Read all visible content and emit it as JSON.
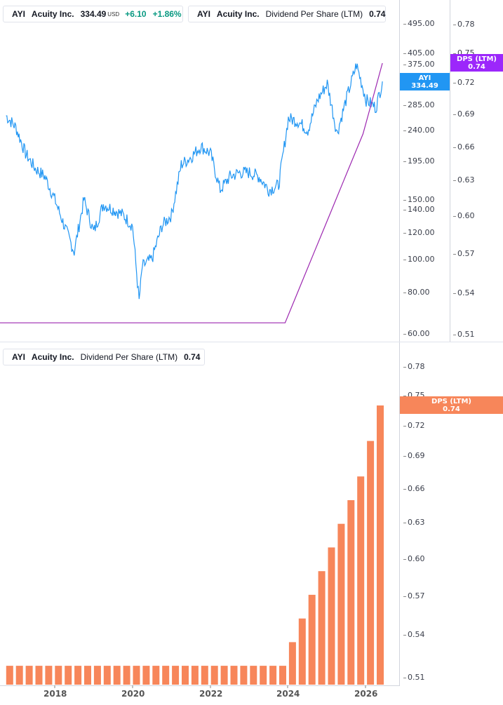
{
  "top_legend": {
    "symbol": "AYI",
    "company": "Acuity Inc.",
    "price": "334.49",
    "currency": "USD",
    "change": "+6.10",
    "change_pct": "+1.86%",
    "accent": "#2196f3"
  },
  "dps_legend_top": {
    "symbol": "AYI",
    "company": "Acuity Inc.",
    "metric": "Dividend Per Share (LTM)",
    "value": "0.74",
    "accent": "#9c27b0"
  },
  "dps_legend_bottom": {
    "symbol": "AYI",
    "company": "Acuity Inc.",
    "metric": "Dividend Per Share (LTM)",
    "value": "0.74",
    "accent": "#f7865a"
  },
  "badges": {
    "price_symbol": "AYI",
    "price_value": "334.49",
    "dps_label": "DPS (LTM)",
    "dps_value": "0.74",
    "dps_label_bottom": "DPS (LTM)",
    "dps_value_bottom": "0.74"
  },
  "colors": {
    "price": "#2196f3",
    "dps_line": "#9c27b0",
    "dps_badge_top": "#9c27fb",
    "bars": "#f7865a"
  },
  "chart_data": [
    {
      "type": "line",
      "series": [
        {
          "name": "AYI",
          "x": [
            "2016-10",
            "2017-01",
            "2017-04",
            "2017-07",
            "2017-10",
            "2018-01",
            "2018-04",
            "2018-07",
            "2018-10",
            "2019-01",
            "2019-04",
            "2019-07",
            "2019-10",
            "2020-01",
            "2020-03",
            "2020-04",
            "2020-07",
            "2020-10",
            "2021-01",
            "2021-04",
            "2021-07",
            "2021-10",
            "2022-01",
            "2022-04",
            "2022-07",
            "2022-10",
            "2023-01",
            "2023-04",
            "2023-07",
            "2023-10",
            "2024-01",
            "2024-04",
            "2024-07",
            "2024-10",
            "2025-01",
            "2025-04",
            "2025-07",
            "2025-10",
            "2026-01",
            "2026-04",
            "2026-06"
          ],
          "values": [
            265,
            245,
            205,
            185,
            175,
            150,
            125,
            105,
            150,
            120,
            145,
            140,
            135,
            125,
            75,
            95,
            100,
            125,
            135,
            190,
            200,
            215,
            205,
            160,
            175,
            180,
            180,
            175,
            160,
            165,
            260,
            255,
            240,
            295,
            330,
            235,
            300,
            375,
            295,
            280,
            334.49
          ]
        },
        {
          "name": "Dividend Per Share (LTM)",
          "x": [
            "2016-10",
            "2023-12",
            "2024-03",
            "2024-06",
            "2024-09",
            "2024-12",
            "2025-03",
            "2025-06",
            "2025-09",
            "2025-12",
            "2026-03",
            "2026-06"
          ],
          "values": [
            0.52,
            0.52,
            0.54,
            0.56,
            0.58,
            0.6,
            0.62,
            0.64,
            0.66,
            0.68,
            0.71,
            0.74
          ]
        }
      ],
      "y_ticks": [
        "495.00",
        "405.00",
        "375.00",
        "285.00",
        "240.00",
        "195.00",
        "150.00",
        "140.00",
        "120.00",
        "100.00",
        "80.00",
        "60.00"
      ],
      "y2_ticks": [
        "0.78",
        "0.75",
        "0.72",
        "0.69",
        "0.66",
        "0.63",
        "0.60",
        "0.57",
        "0.54",
        "0.51"
      ]
    },
    {
      "type": "bar",
      "series": [
        {
          "name": "Dividend Per Share (LTM)",
          "values": [
            0.52,
            0.52,
            0.52,
            0.52,
            0.52,
            0.52,
            0.52,
            0.52,
            0.52,
            0.52,
            0.52,
            0.52,
            0.52,
            0.52,
            0.52,
            0.52,
            0.52,
            0.52,
            0.52,
            0.52,
            0.52,
            0.52,
            0.52,
            0.52,
            0.52,
            0.52,
            0.52,
            0.52,
            0.52,
            0.54,
            0.56,
            0.58,
            0.6,
            0.62,
            0.64,
            0.66,
            0.68,
            0.71,
            0.74
          ]
        }
      ],
      "y_ticks": [
        "0.78",
        "0.75",
        "0.72",
        "0.69",
        "0.66",
        "0.63",
        "0.60",
        "0.57",
        "0.54",
        "0.51"
      ],
      "x_ticks": [
        "2018",
        "2020",
        "2022",
        "2024",
        "2026"
      ]
    }
  ]
}
